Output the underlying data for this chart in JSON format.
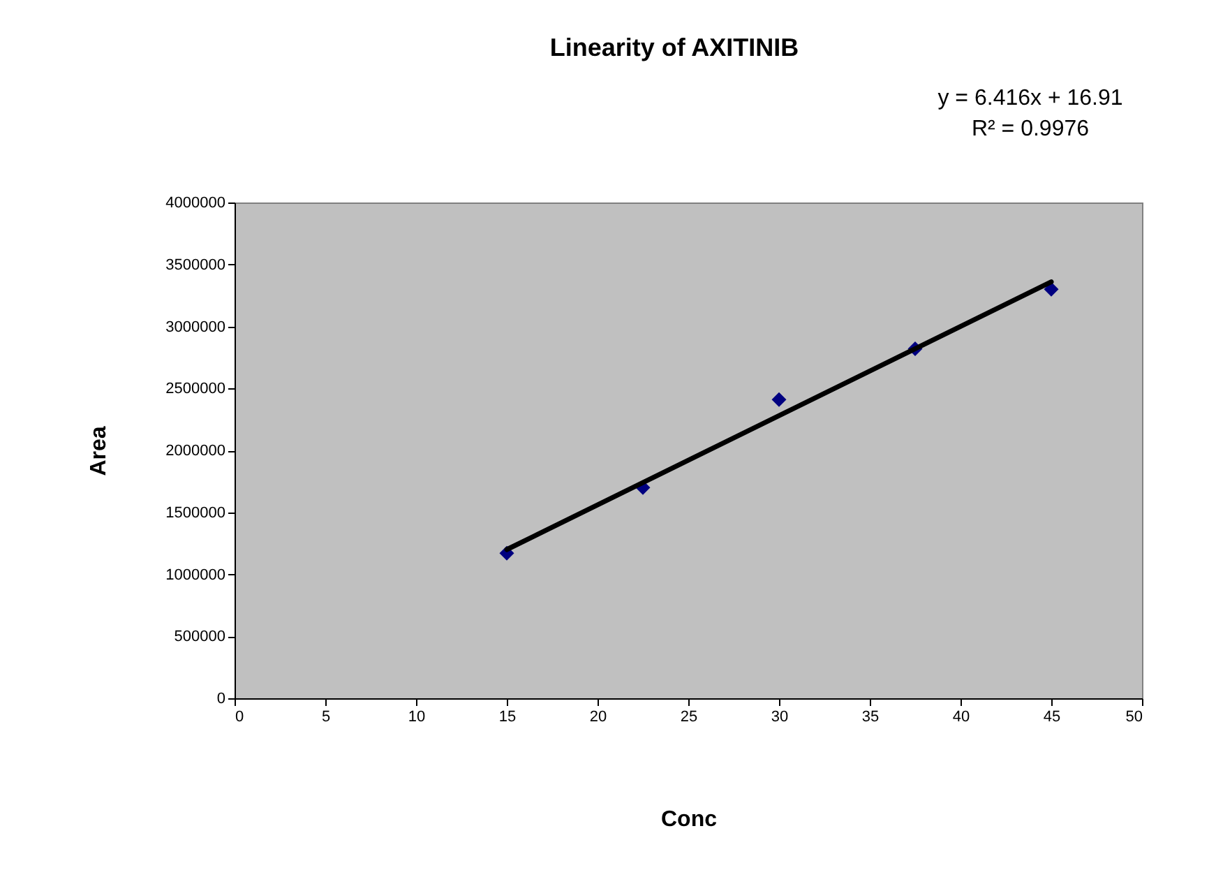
{
  "chart_data": {
    "type": "scatter",
    "title": "Linearity of AXITINIB",
    "xlabel": "Conc",
    "ylabel": "Area",
    "annotations": [
      "y = 6.416x + 16.91",
      "R² = 0.9976"
    ],
    "series": [
      {
        "color": "#000080",
        "marker": "diamond",
        "x": [
          15,
          22.5,
          30,
          37.5,
          45
        ],
        "values": [
          1170000,
          1700000,
          2410000,
          2820000,
          3300000
        ]
      },
      {
        "type": "line",
        "color": "#000000",
        "line_style": "solid",
        "x": [
          15,
          45
        ],
        "values": [
          1200000,
          3360000
        ]
      }
    ],
    "xlim": [
      0,
      50
    ],
    "xticks": [
      0,
      5,
      10,
      15,
      20,
      25,
      30,
      35,
      40,
      45,
      50
    ],
    "ylim": [
      0,
      4000000
    ],
    "yticks": [
      0,
      500000,
      1000000,
      1500000,
      2000000,
      2500000,
      3000000,
      3500000,
      4000000
    ],
    "grid": false
  }
}
